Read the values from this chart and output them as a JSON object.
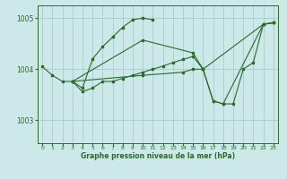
{
  "bg_color": "#cce8e8",
  "line_color": "#2d6a2d",
  "grid_color": "#aacccc",
  "xlabel": "Graphe pression niveau de la mer (hPa)",
  "xlim": [
    -0.5,
    23.5
  ],
  "ylim": [
    1002.55,
    1005.25
  ],
  "yticks": [
    1003,
    1004,
    1005
  ],
  "xticks": [
    0,
    1,
    2,
    3,
    4,
    5,
    6,
    7,
    8,
    9,
    10,
    11,
    12,
    13,
    14,
    15,
    16,
    17,
    18,
    19,
    20,
    21,
    22,
    23
  ],
  "series": [
    {
      "x": [
        0,
        1,
        2,
        3,
        4,
        5,
        6,
        7,
        8,
        9,
        10,
        11
      ],
      "y": [
        1004.05,
        1003.88,
        1003.76,
        1003.76,
        1003.63,
        1004.2,
        1004.44,
        1004.63,
        1004.82,
        1004.97,
        1005.0,
        1004.97
      ]
    },
    {
      "x": [
        3,
        4,
        5,
        6,
        7,
        8,
        9,
        10,
        11,
        12,
        13,
        14,
        15,
        16,
        22,
        23
      ],
      "y": [
        1003.76,
        1003.56,
        1003.63,
        1003.76,
        1003.76,
        1003.82,
        1003.88,
        1003.94,
        1004.0,
        1004.06,
        1004.13,
        1004.19,
        1004.25,
        1004.0,
        1004.88,
        1004.91
      ]
    },
    {
      "x": [
        3,
        10,
        15,
        16,
        17,
        18,
        22,
        23
      ],
      "y": [
        1003.76,
        1004.57,
        1004.32,
        1004.0,
        1003.38,
        1003.32,
        1004.88,
        1004.91
      ]
    },
    {
      "x": [
        3,
        10,
        14,
        15,
        16,
        17,
        18,
        19,
        20,
        21,
        22,
        23
      ],
      "y": [
        1003.76,
        1003.88,
        1003.94,
        1004.0,
        1004.0,
        1003.38,
        1003.32,
        1003.32,
        1004.0,
        1004.13,
        1004.88,
        1004.91
      ]
    }
  ]
}
